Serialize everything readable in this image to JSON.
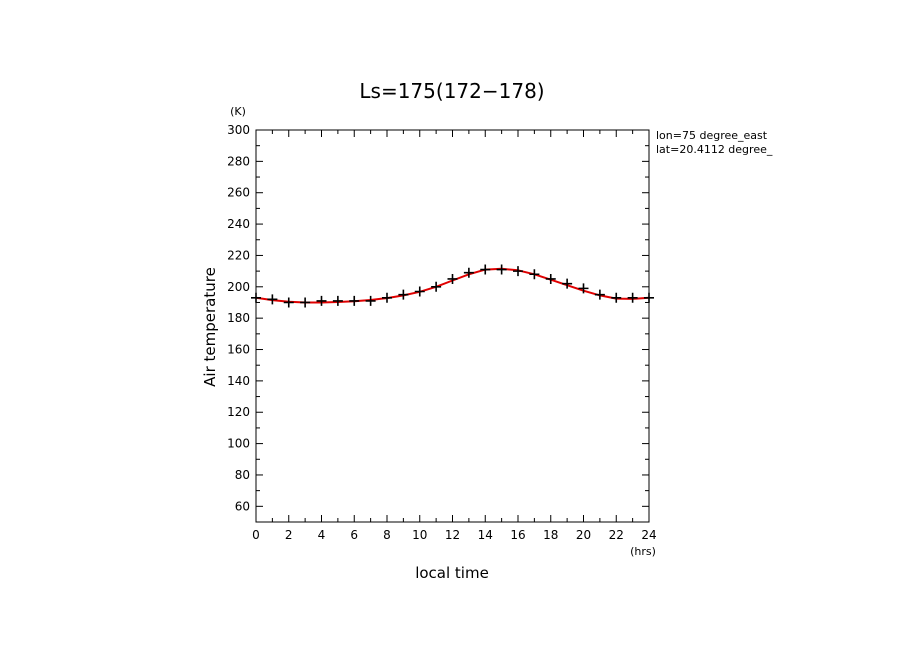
{
  "chart_data": {
    "type": "line",
    "title": "Ls=175(172−178)",
    "xlabel": "local time",
    "ylabel": "Air temperature",
    "x_unit": "(hrs)",
    "y_unit": "(K)",
    "xlim": [
      0,
      24
    ],
    "ylim": [
      50,
      300
    ],
    "x_ticks": [
      0,
      2,
      4,
      6,
      8,
      10,
      12,
      14,
      16,
      18,
      20,
      22,
      24
    ],
    "y_ticks": [
      60,
      80,
      100,
      120,
      140,
      160,
      180,
      200,
      220,
      240,
      260,
      280,
      300
    ],
    "annotations": [
      "lon=75 degree_east",
      "lat=20.4112 degree_"
    ],
    "colors": {
      "fit_line": "#e00000",
      "markers": "#000000"
    },
    "series": [
      {
        "marker": "plus",
        "x": [
          0,
          1,
          2,
          3,
          4,
          5,
          6,
          7,
          8,
          9,
          10,
          11,
          12,
          13,
          14,
          15,
          16,
          17,
          18,
          19,
          20,
          21,
          22,
          23,
          24
        ],
        "y": [
          193,
          192,
          190,
          190,
          191,
          191,
          191,
          191,
          193,
          195,
          197,
          200,
          205,
          209,
          211,
          211,
          210,
          208,
          205,
          202,
          199,
          195,
          193,
          193,
          193
        ]
      },
      {
        "line": "solid",
        "x": [
          0,
          1,
          2,
          3,
          4,
          5,
          6,
          7,
          8,
          9,
          10,
          11,
          12,
          13,
          14,
          15,
          16,
          17,
          18,
          19,
          20,
          21,
          22,
          23,
          24
        ],
        "y": [
          193,
          191.5,
          190.5,
          190,
          190,
          190.3,
          190.8,
          191.6,
          192.8,
          194.5,
          196.8,
          200,
          204,
          208,
          211,
          211.5,
          210.5,
          208,
          204.5,
          201,
          197.5,
          194.5,
          192.5,
          192.3,
          193
        ]
      }
    ]
  }
}
